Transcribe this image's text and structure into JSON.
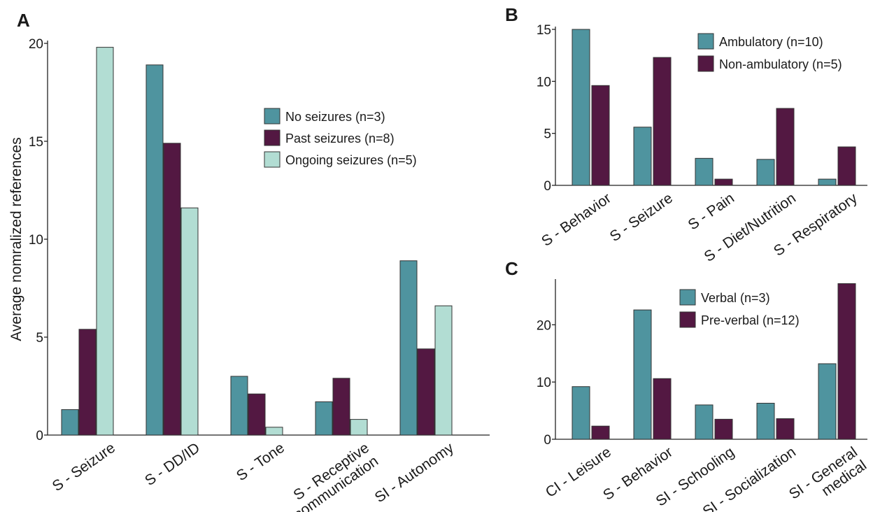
{
  "colors": {
    "teal": "#4f949f",
    "plum": "#531842",
    "mint": "#b2ddd3"
  },
  "chart_data": [
    {
      "panel": "A",
      "type": "bar",
      "categories": [
        "S - Seizure",
        "S - DD/ID",
        "S - Tone",
        "S - Receptive communication",
        "SI - Autonomy"
      ],
      "category_lines": [
        [
          "S - Seizure"
        ],
        [
          "S - DD/ID"
        ],
        [
          "S - Tone"
        ],
        [
          "S - Receptive",
          "communication"
        ],
        [
          "SI - Autonomy"
        ]
      ],
      "series": [
        {
          "name": "No seizures (n=3)",
          "color": "#4f949f",
          "values": [
            1.3,
            18.9,
            3.0,
            1.7,
            8.9
          ]
        },
        {
          "name": "Past seizures (n=8)",
          "color": "#531842",
          "values": [
            5.4,
            14.9,
            2.1,
            2.9,
            4.4
          ]
        },
        {
          "name": "Ongoing seizures (n=5)",
          "color": "#b2ddd3",
          "values": [
            19.8,
            11.6,
            0.4,
            0.8,
            6.6
          ]
        }
      ],
      "ylabel": "Average nomralized references",
      "ylim": [
        0,
        20
      ],
      "yticks": [
        0,
        5,
        10,
        15,
        20
      ],
      "legend": "upper-right",
      "grid": false
    },
    {
      "panel": "B",
      "type": "bar",
      "categories": [
        "S - Behavior",
        "S - Seizure",
        "S - Pain",
        "S - Diet/Nutrition",
        "S - Respiratory"
      ],
      "category_lines": [
        [
          "S - Behavior"
        ],
        [
          "S - Seizure"
        ],
        [
          "S - Pain"
        ],
        [
          "S - Diet/Nutrition"
        ],
        [
          "S - Respiratory"
        ]
      ],
      "series": [
        {
          "name": "Ambulatory (n=10)",
          "color": "#4f949f",
          "values": [
            15.0,
            5.6,
            2.6,
            2.5,
            0.6
          ]
        },
        {
          "name": "Non-ambulatory (n=5)",
          "color": "#531842",
          "values": [
            9.6,
            12.3,
            0.6,
            7.4,
            3.7
          ]
        }
      ],
      "ylabel": "",
      "ylim": [
        0,
        15
      ],
      "yticks": [
        0,
        5,
        10,
        15
      ],
      "legend": "upper-right",
      "grid": false
    },
    {
      "panel": "C",
      "type": "bar",
      "categories": [
        "CI - Leisure",
        "S - Behavior",
        "SI - Schooling",
        "SI - Socialization",
        "SI - General medical"
      ],
      "category_lines": [
        [
          "CI - Leisure"
        ],
        [
          "S - Behavior"
        ],
        [
          "SI - Schooling"
        ],
        [
          "SI - Socialization"
        ],
        [
          "SI - General",
          "medical"
        ]
      ],
      "series": [
        {
          "name": "Verbal (n=3)",
          "color": "#4f949f",
          "values": [
            9.2,
            22.6,
            6.0,
            6.3,
            13.2
          ]
        },
        {
          "name": "Pre-verbal (n=12)",
          "color": "#531842",
          "values": [
            2.3,
            10.6,
            3.5,
            3.6,
            27.2
          ]
        }
      ],
      "ylabel": "",
      "ylim": [
        0,
        27.5
      ],
      "yticks": [
        0,
        10,
        20
      ],
      "legend": "upper-center",
      "grid": false
    }
  ]
}
